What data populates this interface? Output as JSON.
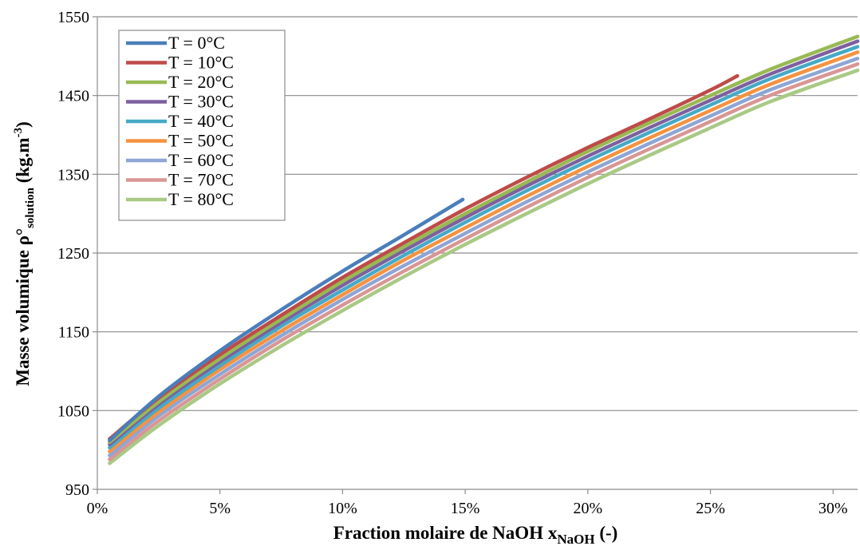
{
  "chart_data": {
    "type": "line",
    "title": "",
    "xlabel": {
      "main": "Fraction molaire de NaOH x",
      "sub": "NaOH",
      "tail": " (-)"
    },
    "ylabel": {
      "main": "Masse volumique ρ°",
      "sub": "solution",
      "mid": " (kg.m",
      "sup": "-3",
      "tail": ")"
    },
    "xlim": [
      0,
      0.31
    ],
    "ylim": [
      950,
      1550
    ],
    "x_ticks": [
      0,
      0.05,
      0.1,
      0.15,
      0.2,
      0.25,
      0.3
    ],
    "x_tick_labels": [
      "0%",
      "5%",
      "10%",
      "15%",
      "20%",
      "25%",
      "30%"
    ],
    "y_ticks": [
      950,
      1050,
      1150,
      1250,
      1350,
      1450,
      1550
    ],
    "y_tick_labels": [
      "950",
      "1050",
      "1150",
      "1250",
      "1350",
      "1450",
      "1550"
    ],
    "grid": "horizontal",
    "legend_position": "top-left",
    "series": [
      {
        "name": "T = 0°C",
        "color": "#4A7EBB",
        "x": [
          0.005,
          0.025,
          0.05,
          0.075,
          0.1,
          0.125,
          0.149
        ],
        "y": [
          1012,
          1068,
          1126,
          1178,
          1227,
          1273,
          1318
        ]
      },
      {
        "name": "T = 10°C",
        "color": "#BE4B48",
        "x": [
          0.005,
          0.025,
          0.05,
          0.075,
          0.1,
          0.125,
          0.15,
          0.175,
          0.2,
          0.225,
          0.25,
          0.261
        ],
        "y": [
          1014,
          1066,
          1121,
          1171,
          1219,
          1263,
          1306,
          1346,
          1384,
          1420,
          1457,
          1475
        ]
      },
      {
        "name": "T = 20°C",
        "color": "#98B954",
        "x": [
          0.005,
          0.025,
          0.05,
          0.075,
          0.1,
          0.125,
          0.15,
          0.175,
          0.2,
          0.225,
          0.25,
          0.275,
          0.31
        ],
        "y": [
          1010,
          1061,
          1116,
          1166,
          1214,
          1258,
          1300,
          1340,
          1379,
          1415,
          1450,
          1484,
          1525
        ]
      },
      {
        "name": "T = 30°C",
        "color": "#7D60A0",
        "x": [
          0.005,
          0.025,
          0.05,
          0.075,
          0.1,
          0.125,
          0.15,
          0.175,
          0.2,
          0.225,
          0.25,
          0.275,
          0.31
        ],
        "y": [
          1007,
          1058,
          1112,
          1162,
          1209,
          1253,
          1295,
          1335,
          1373,
          1409,
          1444,
          1478,
          1519
        ]
      },
      {
        "name": "T = 40°C",
        "color": "#46AAC5",
        "x": [
          0.005,
          0.025,
          0.05,
          0.075,
          0.1,
          0.125,
          0.15,
          0.175,
          0.2,
          0.225,
          0.25,
          0.275,
          0.31
        ],
        "y": [
          1003,
          1053,
          1107,
          1157,
          1203,
          1247,
          1289,
          1329,
          1367,
          1403,
          1438,
          1472,
          1512
        ]
      },
      {
        "name": "T = 50°C",
        "color": "#F69240",
        "x": [
          0.005,
          0.025,
          0.05,
          0.075,
          0.1,
          0.125,
          0.15,
          0.175,
          0.2,
          0.225,
          0.25,
          0.275,
          0.31
        ],
        "y": [
          998,
          1048,
          1102,
          1151,
          1197,
          1241,
          1282,
          1322,
          1360,
          1396,
          1431,
          1465,
          1505
        ]
      },
      {
        "name": "T = 60°C",
        "color": "#8EA6D5",
        "x": [
          0.005,
          0.025,
          0.05,
          0.075,
          0.1,
          0.125,
          0.15,
          0.175,
          0.2,
          0.225,
          0.25,
          0.275,
          0.31
        ],
        "y": [
          993,
          1043,
          1096,
          1145,
          1191,
          1234,
          1275,
          1315,
          1353,
          1389,
          1424,
          1458,
          1497
        ]
      },
      {
        "name": "T = 70°C",
        "color": "#D99694",
        "x": [
          0.005,
          0.025,
          0.05,
          0.075,
          0.1,
          0.125,
          0.15,
          0.175,
          0.2,
          0.225,
          0.25,
          0.275,
          0.31
        ],
        "y": [
          988,
          1037,
          1090,
          1139,
          1184,
          1227,
          1268,
          1308,
          1346,
          1382,
          1417,
          1451,
          1490
        ]
      },
      {
        "name": "T = 80°C",
        "color": "#A9C985",
        "x": [
          0.005,
          0.025,
          0.05,
          0.075,
          0.1,
          0.125,
          0.15,
          0.175,
          0.2,
          0.225,
          0.25,
          0.275,
          0.31
        ],
        "y": [
          983,
          1031,
          1084,
          1132,
          1177,
          1220,
          1261,
          1300,
          1338,
          1374,
          1409,
          1443,
          1482
        ]
      }
    ]
  }
}
